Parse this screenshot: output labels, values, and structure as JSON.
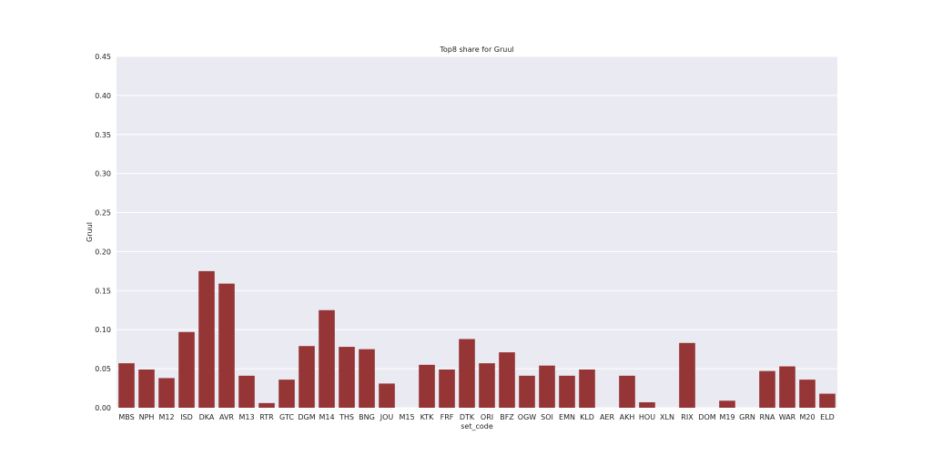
{
  "chart_data": {
    "type": "bar",
    "title": "Top8 share for Gruul",
    "xlabel": "set_code",
    "ylabel": "Gruul",
    "ylim": [
      0,
      0.45
    ],
    "yticks": [
      "0.00",
      "0.05",
      "0.10",
      "0.15",
      "0.20",
      "0.25",
      "0.30",
      "0.35",
      "0.40",
      "0.45"
    ],
    "grid": true,
    "bar_color": "#953535",
    "plot_background": "#eaeaf2",
    "categories": [
      "MBS",
      "NPH",
      "M12",
      "ISD",
      "DKA",
      "AVR",
      "M13",
      "RTR",
      "GTC",
      "DGM",
      "M14",
      "THS",
      "BNG",
      "JOU",
      "M15",
      "KTK",
      "FRF",
      "DTK",
      "ORI",
      "BFZ",
      "OGW",
      "SOI",
      "EMN",
      "KLD",
      "AER",
      "AKH",
      "HOU",
      "XLN",
      "RIX",
      "DOM",
      "M19",
      "GRN",
      "RNA",
      "WAR",
      "M20",
      "ELD"
    ],
    "values": [
      0.057,
      0.049,
      0.038,
      0.097,
      0.175,
      0.159,
      0.041,
      0.006,
      0.036,
      0.079,
      0.125,
      0.078,
      0.075,
      0.031,
      0.0,
      0.055,
      0.049,
      0.088,
      0.057,
      0.071,
      0.041,
      0.054,
      0.041,
      0.049,
      0.0,
      0.041,
      0.007,
      0.0,
      0.083,
      0.0,
      0.009,
      0.0,
      0.047,
      0.053,
      0.036,
      0.018
    ]
  }
}
